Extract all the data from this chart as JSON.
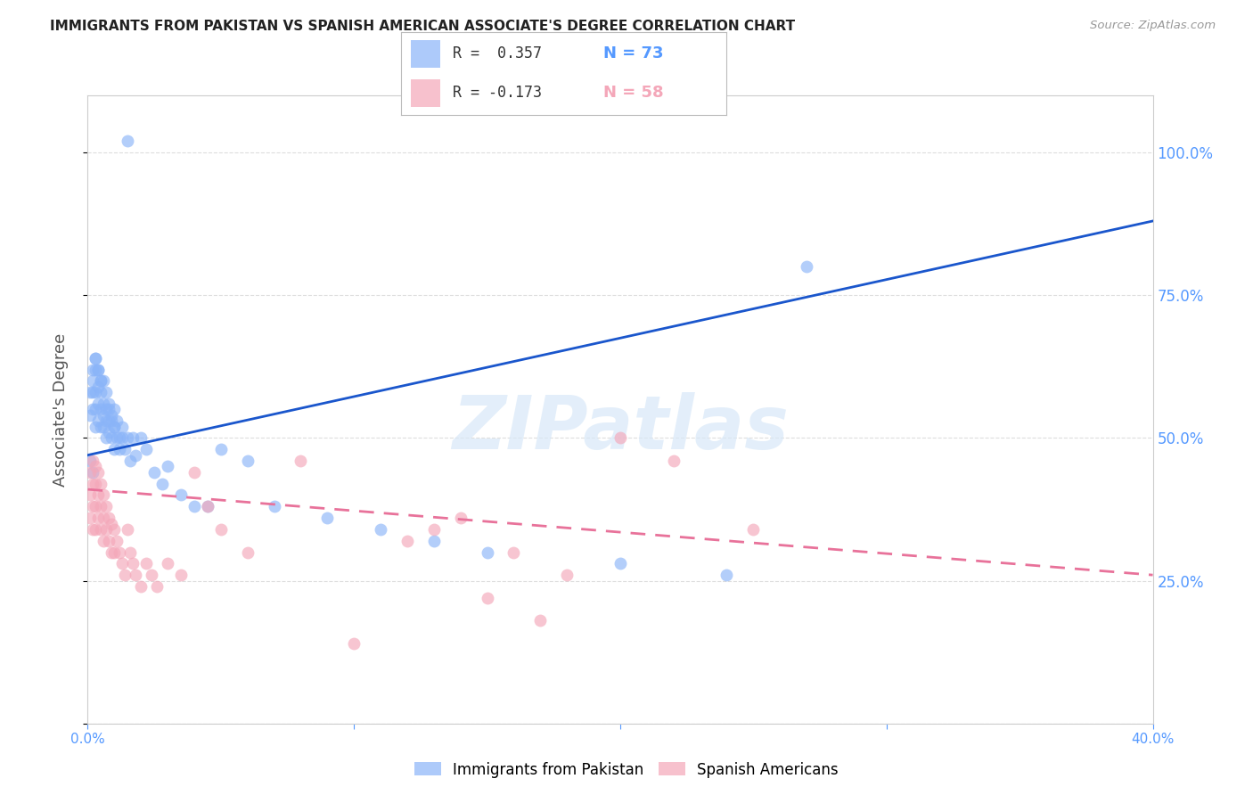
{
  "title": "IMMIGRANTS FROM PAKISTAN VS SPANISH AMERICAN ASSOCIATE'S DEGREE CORRELATION CHART",
  "source": "Source: ZipAtlas.com",
  "ylabel": "Associate's Degree",
  "right_yticklabels": [
    "",
    "25.0%",
    "50.0%",
    "75.0%",
    "100.0%"
  ],
  "right_yticks": [
    0.0,
    0.25,
    0.5,
    0.75,
    1.0
  ],
  "legend": {
    "blue_label": "Immigrants from Pakistan",
    "pink_label": "Spanish Americans",
    "blue_R": "R =  0.357",
    "blue_N": "N = 73",
    "pink_R": "R = -0.173",
    "pink_N": "N = 58"
  },
  "blue_scatter_x": [
    0.001,
    0.001,
    0.002,
    0.002,
    0.002,
    0.002,
    0.003,
    0.003,
    0.003,
    0.003,
    0.003,
    0.004,
    0.004,
    0.004,
    0.004,
    0.005,
    0.005,
    0.005,
    0.005,
    0.006,
    0.006,
    0.006,
    0.007,
    0.007,
    0.007,
    0.008,
    0.008,
    0.008,
    0.009,
    0.009,
    0.01,
    0.01,
    0.01,
    0.011,
    0.011,
    0.012,
    0.013,
    0.013,
    0.014,
    0.015,
    0.016,
    0.017,
    0.018,
    0.02,
    0.022,
    0.025,
    0.028,
    0.03,
    0.035,
    0.04,
    0.045,
    0.05,
    0.06,
    0.07,
    0.09,
    0.11,
    0.13,
    0.15,
    0.2,
    0.24,
    0.27,
    0.001,
    0.002,
    0.003,
    0.004,
    0.005,
    0.006,
    0.007,
    0.008,
    0.009,
    0.01,
    0.012,
    0.015
  ],
  "blue_scatter_y": [
    0.54,
    0.58,
    0.55,
    0.58,
    0.6,
    0.62,
    0.52,
    0.55,
    0.58,
    0.62,
    0.64,
    0.53,
    0.56,
    0.59,
    0.62,
    0.52,
    0.55,
    0.58,
    0.6,
    0.52,
    0.54,
    0.56,
    0.5,
    0.53,
    0.55,
    0.51,
    0.53,
    0.55,
    0.5,
    0.53,
    0.48,
    0.52,
    0.55,
    0.5,
    0.53,
    0.48,
    0.5,
    0.52,
    0.48,
    0.5,
    0.46,
    0.5,
    0.47,
    0.5,
    0.48,
    0.44,
    0.42,
    0.45,
    0.4,
    0.38,
    0.38,
    0.48,
    0.46,
    0.38,
    0.36,
    0.34,
    0.32,
    0.3,
    0.28,
    0.26,
    0.8,
    0.46,
    0.44,
    0.64,
    0.62,
    0.6,
    0.6,
    0.58,
    0.56,
    0.54,
    0.52,
    0.5,
    1.02
  ],
  "pink_scatter_x": [
    0.001,
    0.001,
    0.001,
    0.002,
    0.002,
    0.002,
    0.002,
    0.003,
    0.003,
    0.003,
    0.003,
    0.004,
    0.004,
    0.004,
    0.005,
    0.005,
    0.005,
    0.006,
    0.006,
    0.006,
    0.007,
    0.007,
    0.008,
    0.008,
    0.009,
    0.009,
    0.01,
    0.01,
    0.011,
    0.012,
    0.013,
    0.014,
    0.015,
    0.016,
    0.017,
    0.018,
    0.02,
    0.022,
    0.024,
    0.026,
    0.03,
    0.035,
    0.04,
    0.045,
    0.05,
    0.06,
    0.08,
    0.1,
    0.12,
    0.14,
    0.15,
    0.17,
    0.2,
    0.22,
    0.13,
    0.16,
    0.18,
    0.25
  ],
  "pink_scatter_y": [
    0.44,
    0.4,
    0.36,
    0.46,
    0.42,
    0.38,
    0.34,
    0.45,
    0.42,
    0.38,
    0.34,
    0.44,
    0.4,
    0.36,
    0.42,
    0.38,
    0.34,
    0.4,
    0.36,
    0.32,
    0.38,
    0.34,
    0.36,
    0.32,
    0.35,
    0.3,
    0.34,
    0.3,
    0.32,
    0.3,
    0.28,
    0.26,
    0.34,
    0.3,
    0.28,
    0.26,
    0.24,
    0.28,
    0.26,
    0.24,
    0.28,
    0.26,
    0.44,
    0.38,
    0.34,
    0.3,
    0.46,
    0.14,
    0.32,
    0.36,
    0.22,
    0.18,
    0.5,
    0.46,
    0.34,
    0.3,
    0.26,
    0.34
  ],
  "blue_trend_x": [
    0.0,
    0.4
  ],
  "blue_trend_y": [
    0.47,
    0.88
  ],
  "pink_trend_x": [
    0.0,
    0.4
  ],
  "pink_trend_y": [
    0.41,
    0.26
  ],
  "xlim": [
    0.0,
    0.4
  ],
  "ylim": [
    0.0,
    1.1
  ],
  "watermark": "ZIPatlas",
  "bg_color": "#ffffff",
  "blue_color": "#8ab4f8",
  "pink_color": "#f4a7b9",
  "trend_blue": "#1a56cc",
  "trend_pink": "#e8729a",
  "grid_color": "#dddddd",
  "title_color": "#222222",
  "source_color": "#999999",
  "ylabel_color": "#555555",
  "right_tick_color": "#5599ff",
  "bottom_tick_color": "#5599ff"
}
